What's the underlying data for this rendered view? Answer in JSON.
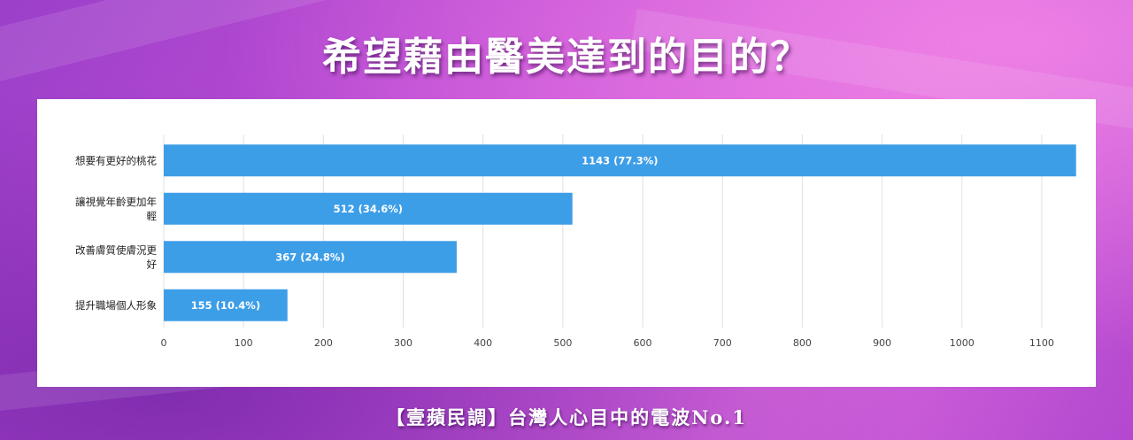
{
  "title": "希望藉由醫美達到的目的？",
  "footer": "【壹蘋民調】台灣人心目中的電波No.1",
  "colors": {
    "bar": "#3d9ee8",
    "grid": "#e0e0e0",
    "panel": "#ffffff"
  },
  "chart_data": {
    "type": "bar",
    "orientation": "horizontal",
    "categories": [
      [
        "想要有更好的桃花"
      ],
      [
        "讓視覺年齡更加年",
        "輕"
      ],
      [
        "改善膚質使膚況更",
        "好"
      ],
      [
        "提升職場個人形象"
      ]
    ],
    "values": [
      1143,
      512,
      367,
      155
    ],
    "data_labels": [
      "1143 (77.3%)",
      "512 (34.6%)",
      "367 (24.8%)",
      "155 (10.4%)"
    ],
    "xlim": [
      0,
      1150
    ],
    "ticks": [
      0,
      100,
      200,
      300,
      400,
      500,
      600,
      700,
      800,
      900,
      1000,
      1100
    ],
    "grid": true,
    "legend": "none"
  }
}
